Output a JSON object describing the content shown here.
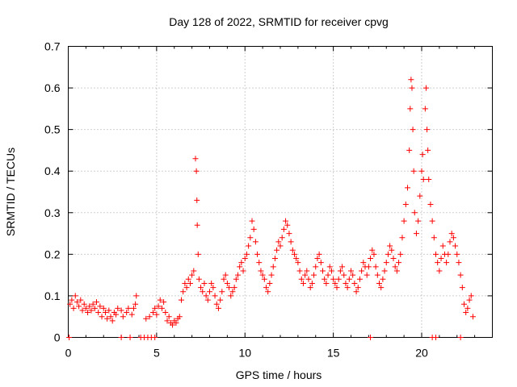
{
  "chart_data": {
    "type": "scatter",
    "title": "Day 128 of 2022, SRMTID for receiver cpvg",
    "xlabel": "GPS time / hours",
    "ylabel": "SRMTID / TECUs",
    "xlim": [
      0,
      24
    ],
    "ylim": [
      0,
      0.7
    ],
    "xticks": [
      "0",
      "5",
      "10",
      "15",
      "20"
    ],
    "yticks": [
      "0",
      "0.1",
      "0.2",
      "0.3",
      "0.4",
      "0.5",
      "0.6",
      "0.7"
    ],
    "grid": true,
    "marker": "plus",
    "marker_color": "#ff0000",
    "series": [
      {
        "name": "SRMTID",
        "points": [
          [
            0.1,
            0.08
          ],
          [
            0.2,
            0.09
          ],
          [
            0.3,
            0.07
          ],
          [
            0.4,
            0.1
          ],
          [
            0.5,
            0.085
          ],
          [
            0.6,
            0.075
          ],
          [
            0.7,
            0.09
          ],
          [
            0.8,
            0.065
          ],
          [
            0.9,
            0.08
          ],
          [
            1.0,
            0.07
          ],
          [
            1.1,
            0.06
          ],
          [
            1.2,
            0.075
          ],
          [
            1.3,
            0.065
          ],
          [
            1.4,
            0.08
          ],
          [
            1.5,
            0.07
          ],
          [
            1.6,
            0.085
          ],
          [
            1.7,
            0.06
          ],
          [
            1.8,
            0.075
          ],
          [
            1.9,
            0.05
          ],
          [
            2.0,
            0.07
          ],
          [
            2.1,
            0.06
          ],
          [
            2.2,
            0.045
          ],
          [
            2.3,
            0.065
          ],
          [
            2.4,
            0.05
          ],
          [
            2.5,
            0.04
          ],
          [
            2.6,
            0.06
          ],
          [
            2.7,
            0.055
          ],
          [
            2.8,
            0.07
          ],
          [
            3.0,
            0.065
          ],
          [
            3.1,
            0.05
          ],
          [
            3.3,
            0.06
          ],
          [
            3.4,
            0.07
          ],
          [
            3.6,
            0.055
          ],
          [
            3.7,
            0.07
          ],
          [
            3.8,
            0.08
          ],
          [
            3.85,
            0.1
          ],
          [
            4.4,
            0.045
          ],
          [
            4.6,
            0.05
          ],
          [
            4.8,
            0.06
          ],
          [
            4.9,
            0.07
          ],
          [
            5.0,
            0.055
          ],
          [
            5.1,
            0.075
          ],
          [
            5.2,
            0.09
          ],
          [
            5.3,
            0.07
          ],
          [
            5.4,
            0.085
          ],
          [
            5.5,
            0.06
          ],
          [
            5.6,
            0.04
          ],
          [
            5.7,
            0.05
          ],
          [
            5.8,
            0.035
          ],
          [
            5.9,
            0.03
          ],
          [
            6.0,
            0.04
          ],
          [
            6.1,
            0.035
          ],
          [
            6.2,
            0.045
          ],
          [
            6.3,
            0.05
          ],
          [
            6.4,
            0.09
          ],
          [
            6.5,
            0.11
          ],
          [
            6.6,
            0.13
          ],
          [
            6.7,
            0.12
          ],
          [
            6.8,
            0.14
          ],
          [
            6.9,
            0.13
          ],
          [
            7.0,
            0.15
          ],
          [
            7.1,
            0.16
          ],
          [
            7.2,
            0.43
          ],
          [
            7.25,
            0.4
          ],
          [
            7.28,
            0.33
          ],
          [
            7.3,
            0.27
          ],
          [
            7.35,
            0.2
          ],
          [
            7.4,
            0.14
          ],
          [
            7.5,
            0.12
          ],
          [
            7.6,
            0.11
          ],
          [
            7.7,
            0.13
          ],
          [
            7.8,
            0.1
          ],
          [
            7.9,
            0.09
          ],
          [
            8.0,
            0.11
          ],
          [
            8.1,
            0.13
          ],
          [
            8.2,
            0.12
          ],
          [
            8.3,
            0.1
          ],
          [
            8.4,
            0.08
          ],
          [
            8.5,
            0.07
          ],
          [
            8.6,
            0.09
          ],
          [
            8.7,
            0.11
          ],
          [
            8.8,
            0.14
          ],
          [
            8.9,
            0.15
          ],
          [
            9.0,
            0.13
          ],
          [
            9.1,
            0.12
          ],
          [
            9.2,
            0.1
          ],
          [
            9.3,
            0.11
          ],
          [
            9.4,
            0.12
          ],
          [
            9.5,
            0.14
          ],
          [
            9.6,
            0.15
          ],
          [
            9.7,
            0.17
          ],
          [
            9.8,
            0.18
          ],
          [
            9.9,
            0.16
          ],
          [
            10.0,
            0.19
          ],
          [
            10.1,
            0.2
          ],
          [
            10.2,
            0.22
          ],
          [
            10.3,
            0.24
          ],
          [
            10.4,
            0.28
          ],
          [
            10.5,
            0.26
          ],
          [
            10.6,
            0.23
          ],
          [
            10.7,
            0.2
          ],
          [
            10.8,
            0.18
          ],
          [
            10.9,
            0.16
          ],
          [
            11.0,
            0.15
          ],
          [
            11.1,
            0.14
          ],
          [
            11.2,
            0.12
          ],
          [
            11.3,
            0.11
          ],
          [
            11.4,
            0.13
          ],
          [
            11.5,
            0.15
          ],
          [
            11.6,
            0.17
          ],
          [
            11.7,
            0.19
          ],
          [
            11.8,
            0.21
          ],
          [
            11.9,
            0.23
          ],
          [
            12.0,
            0.22
          ],
          [
            12.1,
            0.24
          ],
          [
            12.2,
            0.26
          ],
          [
            12.3,
            0.28
          ],
          [
            12.4,
            0.27
          ],
          [
            12.5,
            0.25
          ],
          [
            12.6,
            0.23
          ],
          [
            12.7,
            0.21
          ],
          [
            12.8,
            0.2
          ],
          [
            12.9,
            0.19
          ],
          [
            13.0,
            0.18
          ],
          [
            13.1,
            0.16
          ],
          [
            13.2,
            0.14
          ],
          [
            13.3,
            0.13
          ],
          [
            13.4,
            0.15
          ],
          [
            13.5,
            0.16
          ],
          [
            13.6,
            0.14
          ],
          [
            13.7,
            0.12
          ],
          [
            13.8,
            0.13
          ],
          [
            13.9,
            0.15
          ],
          [
            14.0,
            0.17
          ],
          [
            14.1,
            0.19
          ],
          [
            14.2,
            0.2
          ],
          [
            14.3,
            0.18
          ],
          [
            14.4,
            0.16
          ],
          [
            14.5,
            0.14
          ],
          [
            14.6,
            0.13
          ],
          [
            14.7,
            0.15
          ],
          [
            14.8,
            0.17
          ],
          [
            14.9,
            0.16
          ],
          [
            15.0,
            0.14
          ],
          [
            15.1,
            0.13
          ],
          [
            15.2,
            0.12
          ],
          [
            15.3,
            0.14
          ],
          [
            15.4,
            0.16
          ],
          [
            15.5,
            0.17
          ],
          [
            15.6,
            0.15
          ],
          [
            15.7,
            0.13
          ],
          [
            15.8,
            0.12
          ],
          [
            15.9,
            0.14
          ],
          [
            16.0,
            0.16
          ],
          [
            16.1,
            0.15
          ],
          [
            16.2,
            0.13
          ],
          [
            16.3,
            0.11
          ],
          [
            16.4,
            0.12
          ],
          [
            16.5,
            0.14
          ],
          [
            16.6,
            0.16
          ],
          [
            16.7,
            0.18
          ],
          [
            16.8,
            0.17
          ],
          [
            16.9,
            0.15
          ],
          [
            17.0,
            0.17
          ],
          [
            17.1,
            0.19
          ],
          [
            17.2,
            0.21
          ],
          [
            17.3,
            0.2
          ],
          [
            17.4,
            0.17
          ],
          [
            17.5,
            0.15
          ],
          [
            17.6,
            0.13
          ],
          [
            17.7,
            0.12
          ],
          [
            17.8,
            0.14
          ],
          [
            17.9,
            0.16
          ],
          [
            18.0,
            0.18
          ],
          [
            18.1,
            0.2
          ],
          [
            18.2,
            0.22
          ],
          [
            18.3,
            0.21
          ],
          [
            18.4,
            0.19
          ],
          [
            18.5,
            0.17
          ],
          [
            18.6,
            0.16
          ],
          [
            18.7,
            0.18
          ],
          [
            18.8,
            0.2
          ],
          [
            18.9,
            0.24
          ],
          [
            19.0,
            0.28
          ],
          [
            19.1,
            0.32
          ],
          [
            19.2,
            0.36
          ],
          [
            19.3,
            0.45
          ],
          [
            19.35,
            0.55
          ],
          [
            19.4,
            0.62
          ],
          [
            19.45,
            0.6
          ],
          [
            19.5,
            0.5
          ],
          [
            19.55,
            0.4
          ],
          [
            19.6,
            0.3
          ],
          [
            19.7,
            0.25
          ],
          [
            19.8,
            0.28
          ],
          [
            19.9,
            0.34
          ],
          [
            20.0,
            0.4
          ],
          [
            20.05,
            0.44
          ],
          [
            20.1,
            0.38
          ],
          [
            20.2,
            0.55
          ],
          [
            20.25,
            0.6
          ],
          [
            20.3,
            0.5
          ],
          [
            20.35,
            0.45
          ],
          [
            20.4,
            0.38
          ],
          [
            20.5,
            0.32
          ],
          [
            20.6,
            0.28
          ],
          [
            20.7,
            0.24
          ],
          [
            20.8,
            0.2
          ],
          [
            20.9,
            0.18
          ],
          [
            21.0,
            0.16
          ],
          [
            21.1,
            0.19
          ],
          [
            21.2,
            0.22
          ],
          [
            21.3,
            0.2
          ],
          [
            21.4,
            0.18
          ],
          [
            21.5,
            0.2
          ],
          [
            21.6,
            0.23
          ],
          [
            21.7,
            0.25
          ],
          [
            21.8,
            0.24
          ],
          [
            21.9,
            0.22
          ],
          [
            22.0,
            0.2
          ],
          [
            22.1,
            0.18
          ],
          [
            22.2,
            0.15
          ],
          [
            22.3,
            0.12
          ],
          [
            22.4,
            0.08
          ],
          [
            22.5,
            0.06
          ],
          [
            22.6,
            0.07
          ],
          [
            22.7,
            0.09
          ],
          [
            22.8,
            0.1
          ],
          [
            22.9,
            0.05
          ],
          [
            0.05,
            0.0
          ],
          [
            3.0,
            0.0
          ],
          [
            3.5,
            0.0
          ],
          [
            4.1,
            0.0
          ],
          [
            4.3,
            0.0
          ],
          [
            4.5,
            0.0
          ],
          [
            4.7,
            0.0
          ],
          [
            4.9,
            0.0
          ],
          [
            17.1,
            0.0
          ],
          [
            20.6,
            0.0
          ],
          [
            20.8,
            0.0
          ],
          [
            22.2,
            0.0
          ]
        ]
      }
    ]
  }
}
